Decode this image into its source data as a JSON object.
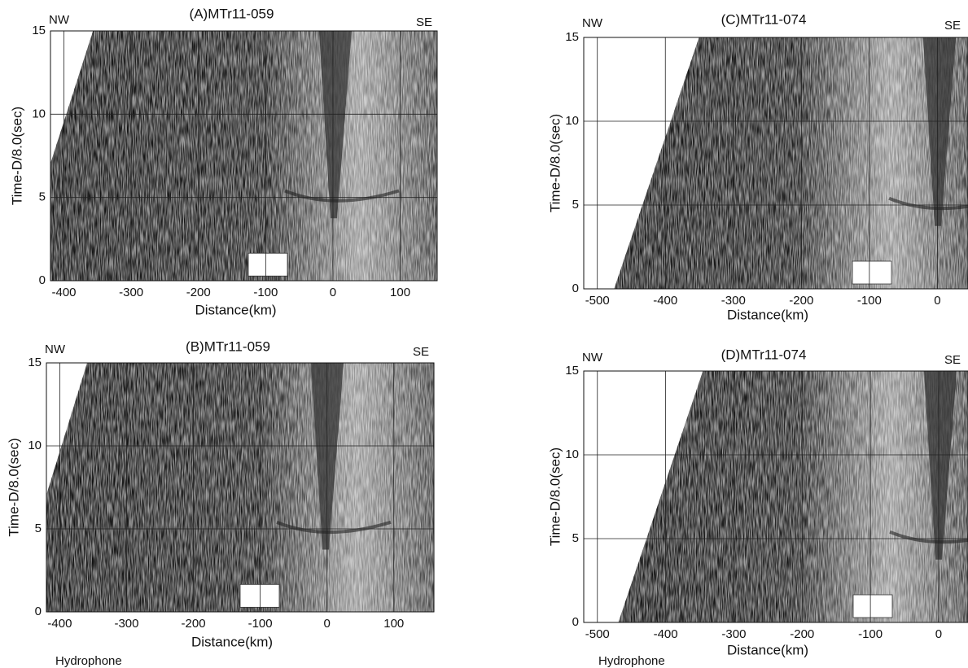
{
  "chart_data": [
    {
      "type": "seismic",
      "title": "(A)MTr11-059",
      "left_label": "NW",
      "right_label": "SE",
      "x_label": "Distance(km)",
      "y_label": "Time-D/8.0(sec)",
      "xlim": [
        -420,
        155
      ],
      "xticks": [
        -400,
        -300,
        -200,
        -100,
        0,
        100
      ],
      "ylim": [
        0,
        15
      ],
      "yticks": [
        0,
        5,
        10,
        15
      ],
      "grid": true
    },
    {
      "type": "seismic",
      "title": "(B)MTr11-059",
      "left_label": "NW",
      "right_label": "SE",
      "x_label": "Distance(km)",
      "y_label": "Time-D/8.0(sec)",
      "annotation": "Hydrophone",
      "xlim": [
        -420,
        160
      ],
      "xticks": [
        -400,
        -300,
        -200,
        -100,
        0,
        100
      ],
      "ylim": [
        0,
        15
      ],
      "yticks": [
        0,
        5,
        10,
        15
      ],
      "grid": true
    },
    {
      "type": "seismic",
      "title": "(C)MTr11-074",
      "left_label": "NW",
      "right_label": "SE",
      "x_label": "Distance(km)",
      "y_label": "Time-D/8.0(sec)",
      "xlim": [
        -520,
        45
      ],
      "xticks": [
        -500,
        -400,
        -300,
        -200,
        -100,
        0
      ],
      "ylim": [
        0,
        15
      ],
      "yticks": [
        0,
        5,
        10,
        15
      ],
      "grid": true
    },
    {
      "type": "seismic",
      "title": "(D)MTr11-074",
      "left_label": "NW",
      "right_label": "SE",
      "x_label": "Distance(km)",
      "y_label": "Time-D/8.0(sec)",
      "annotation": "Hydrophone",
      "xlim": [
        -520,
        43
      ],
      "xticks": [
        -500,
        -400,
        -300,
        -200,
        -100,
        0
      ],
      "ylim": [
        0,
        15
      ],
      "yticks": [
        0,
        5,
        10,
        15
      ],
      "grid": true
    }
  ]
}
